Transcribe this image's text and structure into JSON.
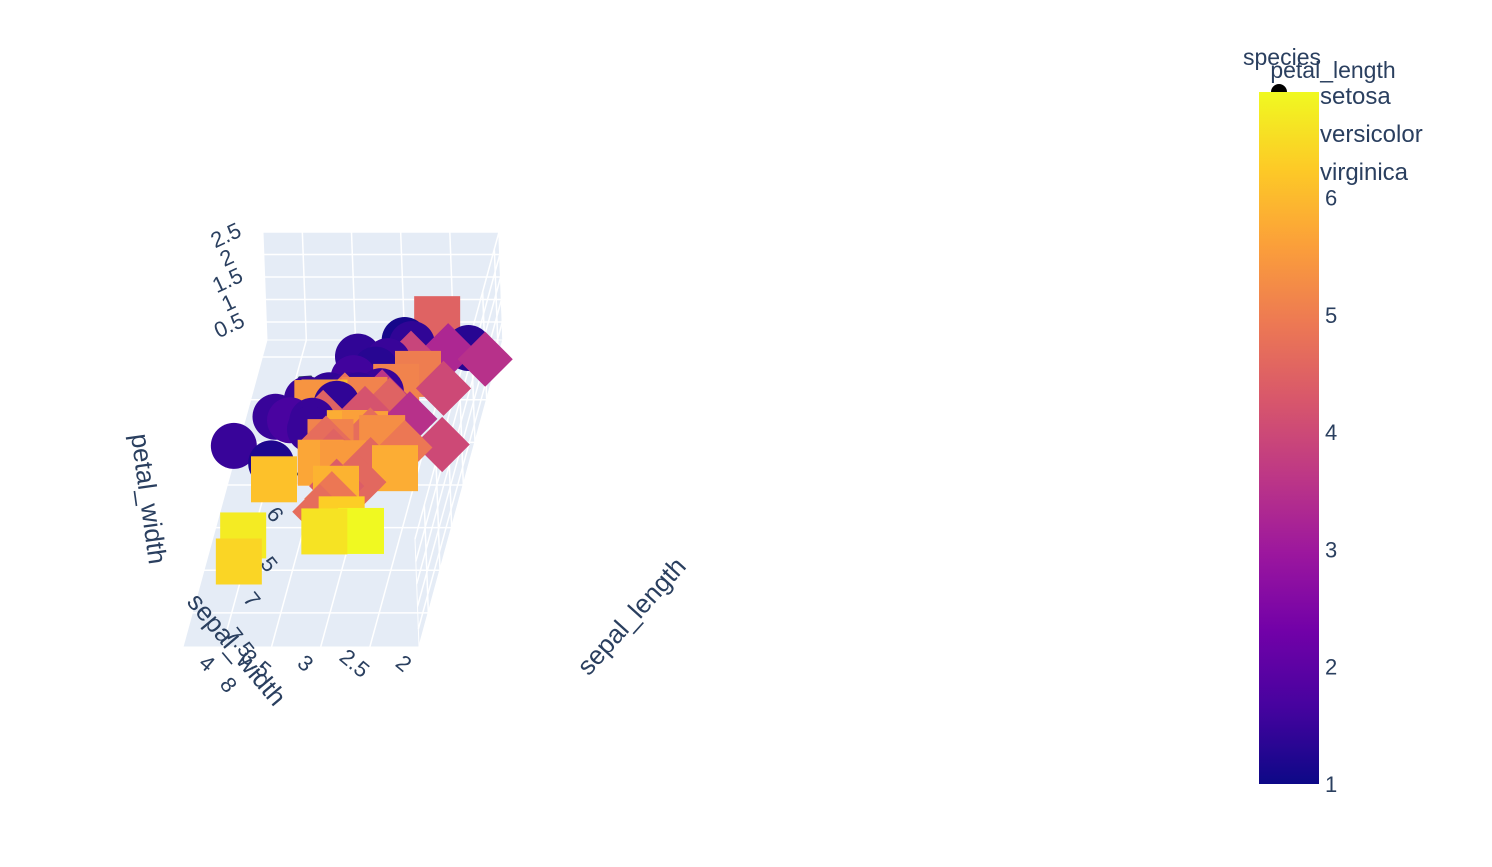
{
  "chart_data": {
    "type": "scatter",
    "variant": "3d-scatter",
    "x": {
      "title": "sepal_length",
      "ticks": [
        "4.5",
        "5",
        "5.5",
        "6",
        "6.5",
        "7",
        "7.5",
        "8"
      ],
      "range": [
        4.3,
        7.9
      ]
    },
    "y": {
      "title": "sepal_width",
      "ticks": [
        "2",
        "2.5",
        "3",
        "3.5",
        "4"
      ],
      "range": [
        2.0,
        4.4
      ]
    },
    "z": {
      "title": "petal_width",
      "ticks": [
        "0.5",
        "1",
        "1.5",
        "2",
        "2.5"
      ],
      "range": [
        0.1,
        2.5
      ]
    },
    "color": {
      "title": "petal_length",
      "ticks": [
        "1",
        "2",
        "3",
        "4",
        "5",
        "6"
      ],
      "range": [
        1,
        6.9
      ],
      "colors": [
        "#0d0887",
        "#46039f",
        "#7201a8",
        "#9c179e",
        "#bd3786",
        "#d8576b",
        "#ed7953",
        "#fb9f3a",
        "#fdca26",
        "#f0f921"
      ]
    },
    "legend": {
      "title": "species",
      "items": [
        {
          "name": "setosa",
          "symbol": "circle"
        },
        {
          "name": "versicolor",
          "symbol": "diamond"
        },
        {
          "name": "virginica",
          "symbol": "square"
        }
      ]
    },
    "series": [
      {
        "name": "setosa",
        "symbol": "circle",
        "points": [
          [
            5.1,
            3.5,
            0.2,
            1.4
          ],
          [
            4.9,
            3.0,
            0.2,
            1.4
          ],
          [
            4.7,
            3.2,
            0.2,
            1.3
          ],
          [
            4.6,
            3.1,
            0.2,
            1.5
          ],
          [
            5.0,
            3.6,
            0.2,
            1.4
          ],
          [
            5.4,
            3.9,
            0.4,
            1.7
          ],
          [
            4.6,
            3.4,
            0.3,
            1.4
          ],
          [
            5.0,
            3.4,
            0.2,
            1.5
          ],
          [
            4.4,
            2.9,
            0.2,
            1.4
          ],
          [
            4.9,
            3.1,
            0.1,
            1.5
          ],
          [
            5.4,
            3.7,
            0.2,
            1.5
          ],
          [
            4.8,
            3.4,
            0.2,
            1.6
          ],
          [
            4.3,
            3.0,
            0.1,
            1.1
          ],
          [
            5.8,
            4.0,
            0.2,
            1.2
          ],
          [
            5.7,
            4.4,
            0.4,
            1.5
          ],
          [
            5.1,
            3.8,
            0.3,
            1.5
          ],
          [
            4.5,
            2.3,
            0.3,
            1.3
          ],
          [
            5.3,
            3.7,
            0.2,
            1.5
          ],
          [
            5.0,
            3.3,
            0.2,
            1.4
          ],
          [
            5.2,
            4.1,
            0.1,
            1.5
          ]
        ]
      },
      {
        "name": "versicolor",
        "symbol": "diamond",
        "points": [
          [
            7.0,
            3.2,
            1.4,
            4.7
          ],
          [
            6.4,
            3.2,
            1.5,
            4.5
          ],
          [
            6.9,
            3.1,
            1.5,
            4.9
          ],
          [
            5.5,
            2.3,
            1.3,
            4.0
          ],
          [
            6.5,
            2.8,
            1.5,
            4.6
          ],
          [
            5.7,
            2.8,
            1.3,
            4.5
          ],
          [
            6.3,
            3.3,
            1.6,
            4.7
          ],
          [
            4.9,
            2.4,
            1.0,
            3.3
          ],
          [
            6.6,
            2.9,
            1.3,
            4.6
          ],
          [
            5.2,
            2.7,
            1.4,
            3.9
          ],
          [
            5.0,
            2.0,
            1.0,
            3.5
          ],
          [
            5.9,
            3.0,
            1.5,
            4.2
          ],
          [
            6.0,
            2.2,
            1.0,
            4.0
          ],
          [
            6.1,
            2.9,
            1.4,
            4.7
          ],
          [
            5.6,
            2.9,
            1.3,
            3.6
          ],
          [
            6.7,
            3.1,
            1.4,
            4.4
          ],
          [
            5.9,
            3.2,
            1.8,
            4.8
          ],
          [
            6.3,
            2.5,
            1.5,
            4.9
          ],
          [
            5.7,
            2.6,
            1.0,
            3.5
          ],
          [
            6.0,
            3.4,
            1.6,
            4.5
          ]
        ]
      },
      {
        "name": "virginica",
        "symbol": "square",
        "points": [
          [
            6.3,
            3.3,
            2.5,
            6.0
          ],
          [
            5.8,
            2.7,
            1.9,
            5.1
          ],
          [
            7.1,
            3.0,
            2.1,
            5.9
          ],
          [
            6.3,
            2.9,
            1.8,
            5.6
          ],
          [
            6.5,
            3.0,
            2.2,
            5.8
          ],
          [
            7.6,
            3.0,
            2.1,
            6.6
          ],
          [
            4.9,
            2.5,
            1.7,
            4.5
          ],
          [
            7.3,
            2.9,
            1.8,
            6.3
          ],
          [
            6.7,
            2.5,
            1.8,
            5.8
          ],
          [
            7.2,
            3.6,
            2.5,
            6.1
          ],
          [
            6.5,
            3.2,
            2.0,
            5.1
          ],
          [
            6.4,
            2.7,
            1.9,
            5.3
          ],
          [
            6.8,
            3.0,
            2.1,
            5.5
          ],
          [
            5.7,
            2.5,
            2.0,
            5.0
          ],
          [
            7.7,
            3.8,
            2.2,
            6.7
          ],
          [
            7.7,
            2.6,
            2.3,
            6.9
          ],
          [
            6.9,
            3.2,
            2.3,
            5.7
          ],
          [
            7.9,
            3.8,
            2.0,
            6.4
          ],
          [
            6.2,
            3.4,
            2.3,
            5.4
          ],
          [
            5.9,
            3.0,
            1.8,
            5.1
          ]
        ]
      }
    ]
  }
}
